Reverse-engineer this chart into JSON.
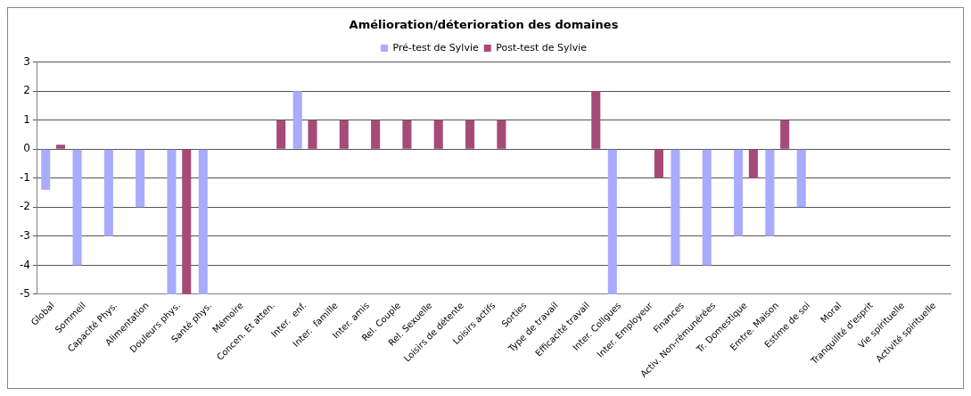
{
  "chart_data": {
    "type": "bar",
    "title": "Amélioration/déterioration des domaines",
    "categories": [
      "Global",
      "Sommeil",
      "Capacité Phys.",
      "Alimentation",
      "Douleurs phys.",
      "Santé phys.",
      "Mémoire",
      "Concen. Et atten.",
      "Inter.  enf.",
      "Inter.  famille",
      "Inter. amis",
      "Rel. Couple",
      "Rel. Sexuelle",
      "Loisirs de détente",
      "Loisirs actifs",
      "Sorties",
      "Type de travail",
      "Efficacité travail",
      "Inter. Collgues",
      "Inter. Employeur",
      "Finances",
      "Activ. Non-rémunérées",
      "Tr. Domestique",
      "Emtre. Maison",
      "Estime de soi",
      "Moral",
      "Tranquilité d'esprit",
      "Vie spirituelle",
      "Activité spirituelle"
    ],
    "series": [
      {
        "name": "Pré-test de Sylvie",
        "color": "#a9abff",
        "values": [
          -1.4,
          -4,
          -3,
          -2,
          -5,
          -5,
          null,
          null,
          2,
          null,
          null,
          null,
          null,
          null,
          null,
          null,
          null,
          null,
          -5,
          null,
          -4,
          -4,
          -3,
          -3,
          -2,
          null,
          null,
          null,
          null
        ]
      },
      {
        "name": "Post-test de Sylvie",
        "color": "#a64a78",
        "values": [
          0.15,
          null,
          null,
          null,
          -5,
          null,
          null,
          1,
          1,
          1,
          1,
          1,
          1,
          1,
          1,
          null,
          null,
          2,
          null,
          -1,
          null,
          null,
          -1,
          1,
          null,
          null,
          null,
          null,
          null
        ]
      }
    ],
    "ylim": [
      -5,
      3
    ],
    "yticks": [
      -5,
      -4,
      -3,
      -2,
      -1,
      0,
      1,
      2,
      3
    ],
    "grid": "y",
    "legend": "top"
  }
}
